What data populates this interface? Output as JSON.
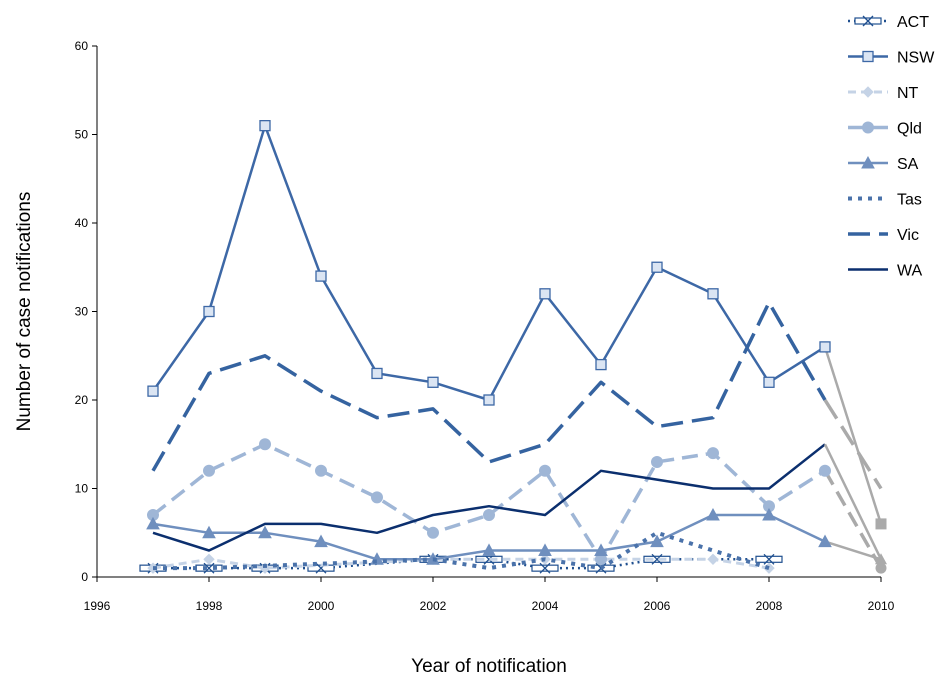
{
  "chart_data": {
    "type": "line",
    "title": "",
    "xlabel": "Year of notification",
    "ylabel": "Number of case notifications",
    "xlim": [
      1996,
      2010
    ],
    "ylim": [
      0,
      60
    ],
    "x_ticks": [
      "1996",
      "1998",
      "2000",
      "2002",
      "2004",
      "2006",
      "2008",
      "2010"
    ],
    "y_ticks": [
      "0",
      "10",
      "20",
      "30",
      "40",
      "50",
      "60"
    ],
    "grid": false,
    "legend_position": "right",
    "incomplete_segment_color": "#aaaaaa",
    "series": [
      {
        "name": "ACT",
        "color": "#1f4f8f",
        "marker": "x",
        "dash": "2,4",
        "width": 2.5,
        "x": [
          1997,
          1998,
          1999,
          2000,
          2002,
          2003,
          2004,
          2005,
          2006,
          2008
        ],
        "y": [
          1,
          1,
          1,
          1,
          2,
          2,
          1,
          1,
          2,
          2
        ]
      },
      {
        "name": "NSW",
        "color": "#3d68a6",
        "marker": "square",
        "dash": "",
        "width": 2.5,
        "x": [
          1997,
          1998,
          1999,
          2000,
          2001,
          2002,
          2003,
          2004,
          2005,
          2006,
          2007,
          2008,
          2009,
          2010
        ],
        "y": [
          21,
          30,
          51,
          34,
          23,
          22,
          20,
          32,
          24,
          35,
          32,
          22,
          26,
          6
        ]
      },
      {
        "name": "NT",
        "color": "#c5d3e6",
        "marker": "diamond",
        "dash": "8,5",
        "width": 3,
        "x": [
          1997,
          1998,
          1999,
          2002,
          2004,
          2007,
          2008
        ],
        "y": [
          1,
          2,
          1,
          2,
          2,
          2,
          1
        ]
      },
      {
        "name": "Qld",
        "color": "#9fb6d6",
        "marker": "circle",
        "dash": "16,8",
        "width": 3.5,
        "x": [
          1997,
          1998,
          1999,
          2000,
          2001,
          2002,
          2003,
          2004,
          2005,
          2006,
          2007,
          2008,
          2009,
          2010
        ],
        "y": [
          7,
          12,
          15,
          12,
          9,
          5,
          7,
          12,
          2,
          13,
          14,
          8,
          12,
          1
        ]
      },
      {
        "name": "SA",
        "color": "#6f8fbe",
        "marker": "triangle",
        "dash": "",
        "width": 2.5,
        "x": [
          1997,
          1998,
          1999,
          2000,
          2001,
          2002,
          2003,
          2004,
          2005,
          2006,
          2007,
          2008,
          2009,
          2010
        ],
        "y": [
          6,
          5,
          5,
          4,
          2,
          2,
          3,
          3,
          3,
          4,
          7,
          7,
          4,
          2
        ]
      },
      {
        "name": "Tas",
        "color": "#4a72aa",
        "marker": "none",
        "dash": "4,6",
        "width": 4,
        "x": [
          1997,
          1998,
          2002,
          2003,
          2004,
          2005,
          2006,
          2007,
          2008
        ],
        "y": [
          1,
          1,
          2,
          1,
          2,
          1,
          5,
          3,
          1
        ]
      },
      {
        "name": "Vic",
        "color": "#3563a0",
        "marker": "none",
        "dash": "22,9",
        "width": 3.5,
        "x": [
          1997,
          1998,
          1999,
          2000,
          2001,
          2002,
          2003,
          2004,
          2005,
          2006,
          2007,
          2008,
          2009,
          2010
        ],
        "y": [
          12,
          23,
          25,
          21,
          18,
          19,
          13,
          15,
          22,
          17,
          18,
          31,
          20,
          10
        ]
      },
      {
        "name": "WA",
        "color": "#0b2f6e",
        "marker": "none",
        "dash": "",
        "width": 2.5,
        "x": [
          1997,
          1998,
          1999,
          2000,
          2001,
          2002,
          2003,
          2004,
          2005,
          2006,
          2007,
          2008,
          2009,
          2010
        ],
        "y": [
          5,
          3,
          6,
          6,
          5,
          7,
          8,
          7,
          12,
          11,
          10,
          10,
          15,
          2
        ]
      }
    ]
  }
}
